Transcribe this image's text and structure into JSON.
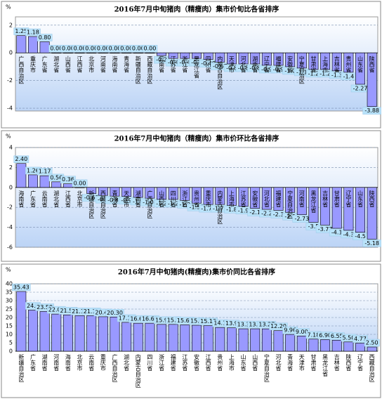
{
  "chart_data": [
    {
      "type": "bar",
      "title": "2016年7月中旬猪肉（精瘦肉）集市价旬比各省排序",
      "y_label": "%",
      "color": "#9999ff",
      "label_pos": "inside",
      "grid": true,
      "categories": [
        "广西自治区",
        "重庆市",
        "广东省",
        "湖北省",
        "山西省",
        "江西省",
        "北京市",
        "河南省",
        "海南省",
        "青海省",
        "新疆自治区",
        "西藏自治区",
        "云南省",
        "江苏省",
        "浙江省",
        "黑龙江省",
        "四川省",
        "内蒙古自治区",
        "天津市",
        "河北省",
        "湖南省",
        "辽宁省",
        "福建省",
        "安徽省",
        "宁夏自治区",
        "甘肃省",
        "上海市",
        "吉林省",
        "贵州省",
        "山东省",
        "陕西省"
      ],
      "values": [
        1.25,
        1.18,
        0.8,
        0,
        0,
        0,
        0,
        0,
        0,
        0,
        0,
        0,
        -0.2,
        -0.4,
        -0.4,
        -0.4,
        -0.48,
        -0.67,
        -0.8,
        -0.8,
        -0.8,
        -0.9,
        -0.9,
        -1,
        -1.1,
        -1.2,
        -1.2,
        -1.3,
        -1.4,
        -2.27,
        -3.88
      ],
      "value_labels": [
        "1.25",
        "1.18",
        "0.80",
        "0.00",
        "0.00",
        "0.00",
        "0.00",
        "0.00",
        "0.00",
        "0.00",
        "0.00",
        "0.00",
        "-0.2",
        "-0.4",
        "-0.4",
        "-0.4",
        "-0.48",
        "-0.67",
        "-0.8",
        "-0.8",
        "-0.8",
        "-0.9",
        "-0.9",
        "-1.0",
        "-1.1",
        "-1.2",
        "-1.2",
        "-1.3",
        "-1.4",
        "-2.27",
        "-3.88"
      ],
      "ylim": [
        -4.2,
        2.6
      ],
      "yticks": [
        -4,
        -2,
        0,
        2
      ]
    },
    {
      "type": "bar",
      "title": "2016年7月中旬猪肉（精瘦肉）集市价环比各省排序",
      "y_label": "%",
      "color": "#9999ff",
      "label_pos": "inside",
      "grid": true,
      "categories": [
        "海南省",
        "广东省",
        "云南省",
        "湖北省",
        "江西省",
        "北京市",
        "新疆自治区",
        "西藏自治区",
        "青海省",
        "天津市",
        "湖南省",
        "广西自治区",
        "山西省",
        "四川省",
        "浙江省",
        "贵州省",
        "重庆市",
        "内蒙古自治区",
        "上海市",
        "江苏省",
        "安徽省",
        "河北省",
        "福建省",
        "宁夏自治区",
        "河南省",
        "黑龙江省",
        "吉林省",
        "甘肃省",
        "辽宁省",
        "山东省",
        "陕西省"
      ],
      "values": [
        2.4,
        1.26,
        1.17,
        0.56,
        0.36,
        0,
        -0.62,
        -0.8,
        -0.87,
        -0.9,
        -1,
        -1.08,
        -1.2,
        -1.2,
        -1.3,
        -1.58,
        -1.71,
        -1.71,
        -1.8,
        -1.9,
        -2.1,
        -2.2,
        -2.3,
        -2.5,
        -2.73,
        -3.5,
        -3.77,
        -4.1,
        -4.3,
        -4.5,
        -5.18
      ],
      "value_labels": [
        "2.40",
        "1.26",
        "1.17",
        "0.56",
        "0.36",
        "0.00",
        "-0.62",
        "-0.8",
        "-0.87",
        "-0.9",
        "-1.0",
        "-1.08",
        "-1.2",
        "-1.2",
        "-1.3",
        "-1.58",
        "-1.71",
        "-1.71",
        "-1.8",
        "-1.9",
        "-2.1",
        "-2.2",
        "-2.3",
        "-2.5",
        "-2.73",
        "-3.5",
        "-3.77",
        "-4.1",
        "-4.3",
        "-4.5",
        "-5.18"
      ],
      "ylim": [
        -6,
        4
      ],
      "yticks": [
        -6,
        -4,
        -2,
        0,
        2,
        4
      ]
    },
    {
      "type": "bar",
      "title": "2016年7月中旬猪肉(精瘦肉)集市价同比各省排序",
      "y_label": "%",
      "color": "#9999ff",
      "label_pos": "below",
      "grid": true,
      "categories": [
        "新疆自治区",
        "广东省",
        "湖南省",
        "河南省",
        "海南省",
        "北京市",
        "云南省",
        "重庆市",
        "广西自治区",
        "湖北省",
        "内蒙古自治区",
        "四川省",
        "浙江省",
        "福建省",
        "江苏省",
        "安徽省",
        "江西省",
        "贵州省",
        "上海市",
        "山东省",
        "山西省",
        "宁夏自治区",
        "河北省",
        "青海省",
        "天津市",
        "甘肃省",
        "黑龙江省",
        "吉林省",
        "陕西省",
        "辽宁省",
        "西藏自治区"
      ],
      "values": [
        35.43,
        24.4,
        23.59,
        22.03,
        21.55,
        21.13,
        21.1,
        20.45,
        20.3,
        17.12,
        16.6,
        16.6,
        15.9,
        15.9,
        15.65,
        15.4,
        15.18,
        14.1,
        13.9,
        13.3,
        13.3,
        13.27,
        12.2,
        9.96,
        9,
        7.18,
        6.9,
        6.55,
        5.5,
        4.77,
        2.5
      ],
      "value_labels": [
        "35.43",
        "24.4",
        "23.59",
        "22.03",
        "21.55",
        "21.13",
        "21.10",
        "20.45",
        "20.30",
        "17.12",
        "16.60",
        "16.60",
        "15.9",
        "15.9",
        "15.65",
        "15.4",
        "15.18",
        "14.1",
        "13.9",
        "13.3",
        "13.3",
        "13.27",
        "12.20",
        "9.96",
        "9.00",
        "7.18",
        "6.90",
        "6.55",
        "5.50",
        "4.77",
        "2.50"
      ],
      "ylim": [
        0,
        40
      ],
      "yticks": [
        0,
        5,
        10,
        15,
        20,
        25,
        30,
        35,
        40
      ]
    }
  ]
}
